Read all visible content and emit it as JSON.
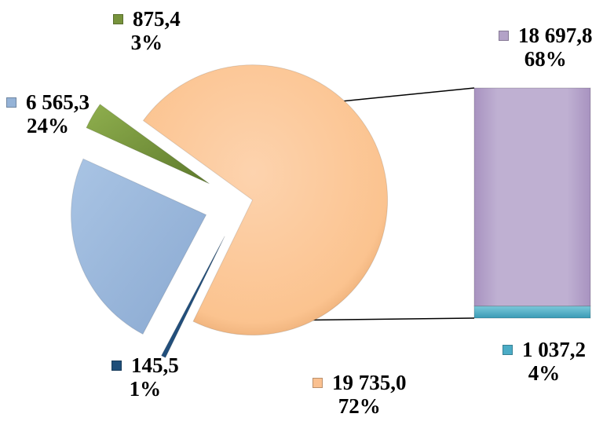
{
  "chart_data": {
    "type": "pie",
    "variant": "bar-of-pie",
    "pie": {
      "slices": [
        {
          "value": 19735.0,
          "value_label": "19 735,0",
          "percent_label": "72%",
          "color": "#FAC090",
          "split": true
        },
        {
          "value": 145.5,
          "value_label": "145,5",
          "percent_label": "1%",
          "color": "#1F4E79",
          "split": false
        },
        {
          "value": 6565.3,
          "value_label": "6 565,3",
          "percent_label": "24%",
          "color": "#95B3D7",
          "split": false
        },
        {
          "value": 875.4,
          "value_label": "875,4",
          "percent_label": "3%",
          "color": "#77933C",
          "split": false
        }
      ]
    },
    "bar": {
      "segments": [
        {
          "value": 1037.2,
          "value_label": "1 037,2",
          "percent_label": "4%",
          "color": "#4BACC6"
        },
        {
          "value": 18697.8,
          "value_label": "18 697,8",
          "percent_label": "68%",
          "color": "#B3A2C7"
        }
      ]
    },
    "legend": "none"
  }
}
